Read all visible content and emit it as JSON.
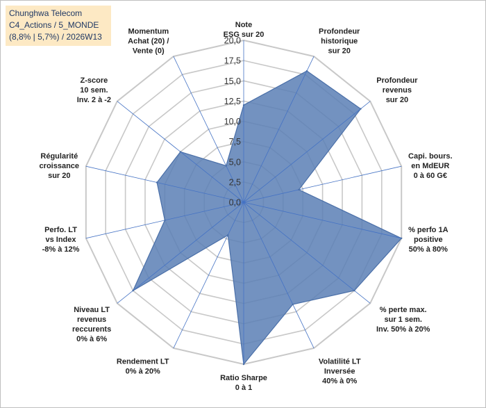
{
  "chart_data": {
    "type": "radar",
    "title_lines": [
      "Chunghwa Telecom",
      "C4_Actions / 5_MONDE",
      "(8,8% | 5,7%) / 2026W13"
    ],
    "r_ticks": [
      "0,0",
      "2,5",
      "5,0",
      "7,5",
      "10,0",
      "12,5",
      "15,0",
      "17,5",
      "20,0"
    ],
    "r_range": [
      0,
      20
    ],
    "grid": true,
    "axes": [
      {
        "label": [
          "Note",
          "ESG sur 20"
        ],
        "value": 12
      },
      {
        "label": [
          "Profondeur",
          "historique",
          "sur 20"
        ],
        "value": 18
      },
      {
        "label": [
          "Profondeur",
          "revenus",
          "sur 20"
        ],
        "value": 18.5
      },
      {
        "label": [
          "Capi. bours.",
          "en MdEUR",
          "0 à 60 G€"
        ],
        "value": 7
      },
      {
        "label": [
          "% perfo 1A",
          "positive",
          "50% à 80%"
        ],
        "value": 20
      },
      {
        "label": [
          "% perte max.",
          "sur 1 sem.",
          "Inv. 50% à 20%"
        ],
        "value": 17.5
      },
      {
        "label": [
          "Volatilité LT",
          "Inversée",
          "40% à 0%"
        ],
        "value": 14
      },
      {
        "label": [
          "Ratio Sharpe",
          "0 à 1"
        ],
        "value": 20
      },
      {
        "label": [
          "Rendement LT",
          "0% à 20%"
        ],
        "value": 4.5
      },
      {
        "label": [
          "Niveau LT",
          "revenus",
          "reccurents",
          "0% à 6%"
        ],
        "value": 17.5
      },
      {
        "label": [
          "Perfo. LT",
          "vs Index",
          "-8% à 12%"
        ],
        "value": 10
      },
      {
        "label": [
          "Régularité",
          "croissance",
          "sur 20"
        ],
        "value": 11
      },
      {
        "label": [
          "Z-score",
          "10 sem.",
          "Inv. 2 à -2"
        ],
        "value": 10
      },
      {
        "label": [
          "Momentum",
          "Achat (20) /",
          "Vente (0)"
        ],
        "value": 5
      }
    ],
    "colors": {
      "fill": "#5b7fb5",
      "stroke": "#4a6fa8",
      "spoke": "#4472c4",
      "grid": "#c8c8c8"
    }
  }
}
